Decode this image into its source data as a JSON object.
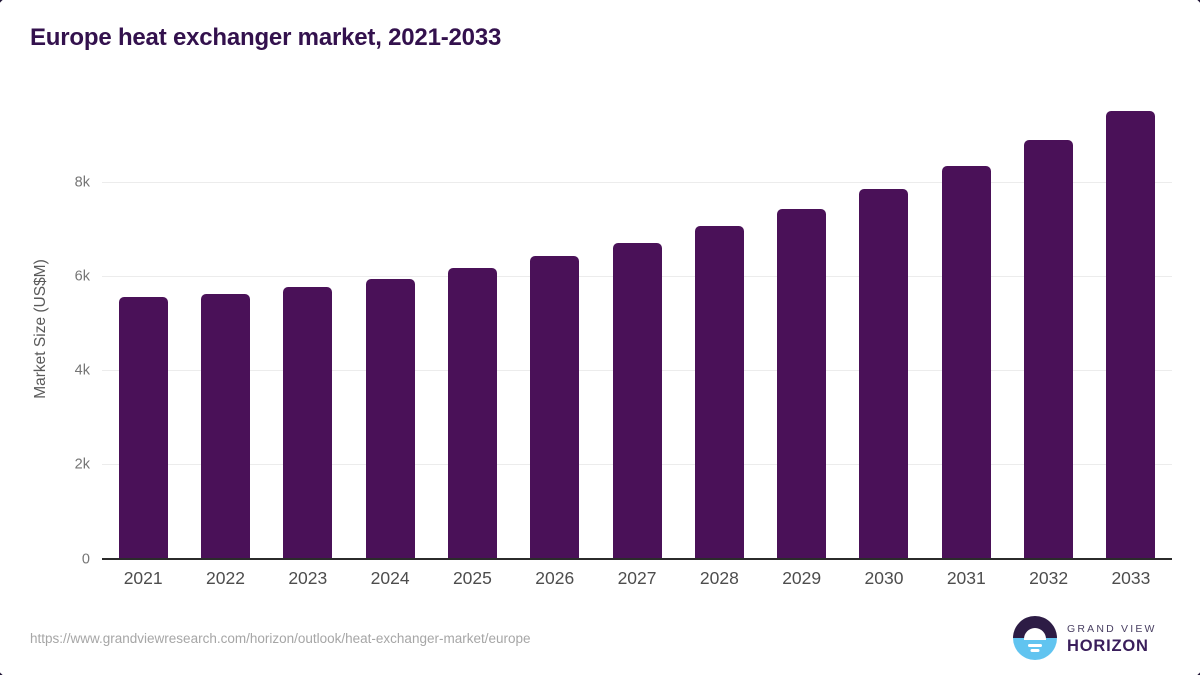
{
  "title": "Europe heat exchanger market, 2021-2033",
  "chart_data": {
    "type": "bar",
    "title": "Europe heat exchanger market, 2021-2033",
    "categories": [
      "2021",
      "2022",
      "2023",
      "2024",
      "2025",
      "2026",
      "2027",
      "2028",
      "2029",
      "2030",
      "2031",
      "2032",
      "2033"
    ],
    "values": [
      5580,
      5630,
      5780,
      5960,
      6180,
      6450,
      6720,
      7080,
      7450,
      7870,
      8350,
      8910,
      9530
    ],
    "xlabel": "",
    "ylabel": "Market Size (US$M)",
    "ylim": [
      0,
      9800
    ],
    "yticks": [
      {
        "value": 0,
        "label": "0"
      },
      {
        "value": 2000,
        "label": "2k"
      },
      {
        "value": 4000,
        "label": "4k"
      },
      {
        "value": 6000,
        "label": "6k"
      },
      {
        "value": 8000,
        "label": "8k"
      }
    ],
    "grid": "horizontal",
    "legend": "none"
  },
  "footer": {
    "source_url": "https://www.grandviewresearch.com/horizon/outlook/heat-exchanger-market/europe",
    "brand_line1": "GRAND VIEW",
    "brand_line2": "HORIZON"
  },
  "colors": {
    "bar": "#4a1158",
    "title": "#33114d",
    "axis_line": "#2b2b2b",
    "gridline": "#ececec",
    "tick_label": "#757575",
    "x_label": "#4d4d4d",
    "url_text": "#a6a6a6",
    "corner_border": "#1d1233",
    "logo_dark": "#2d1c45",
    "logo_blue": "#61c4f0",
    "brand_text": "#3a1e5b"
  }
}
